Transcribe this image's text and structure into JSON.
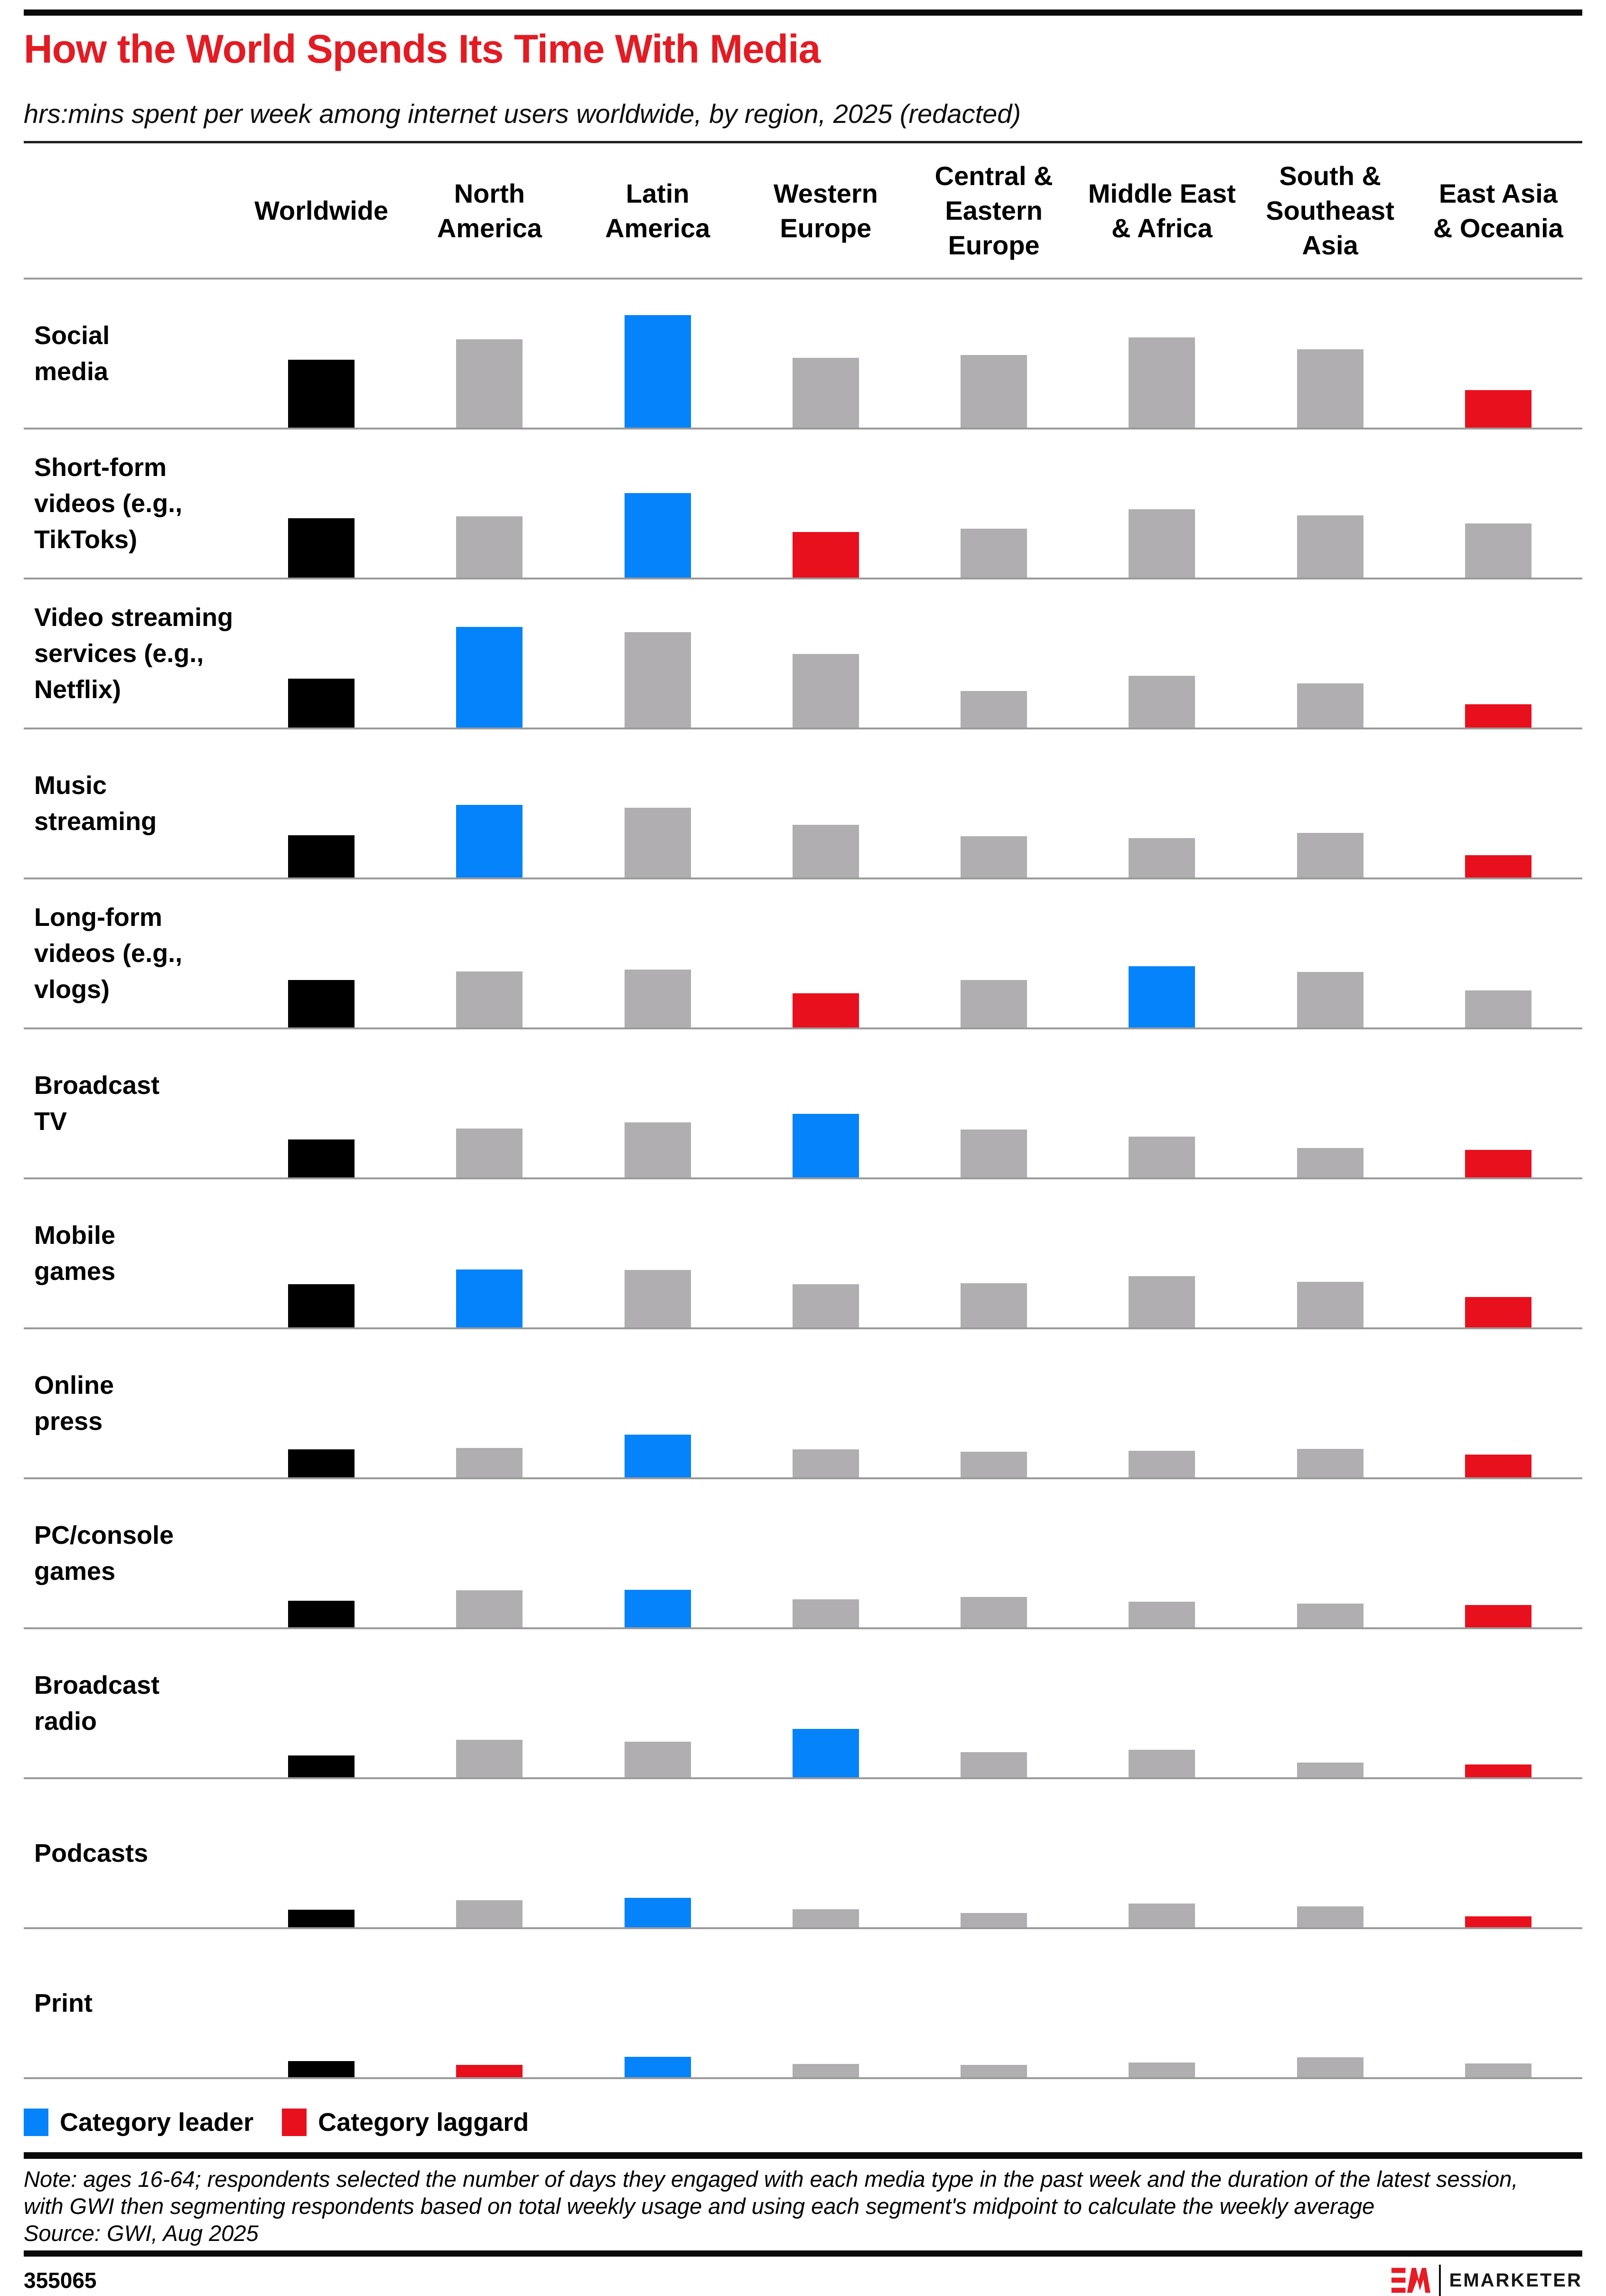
{
  "header": {
    "title": "How the World Spends Its Time With Media",
    "subtitle": "hrs:mins spent per week among internet users worldwide, by region, 2025 (redacted)"
  },
  "colors": {
    "worldwide": "#000000",
    "neutral": "#b0aeb0",
    "leader": "#0583fa",
    "laggard": "#e8101d",
    "title_red": "#e31b23",
    "brand_red": "#e61b25",
    "baseline_gray": "#9a9a9a"
  },
  "legend": {
    "leader_label": "Category leader",
    "laggard_label": "Category laggard"
  },
  "chart_data": {
    "type": "bar",
    "layout": "small-multiples grid: one row per media type, one bar per region, shared baseline per row, legend bottom-left",
    "title": "How the World Spends Its Time With Media",
    "subtitle": "hrs:mins spent per week among internet users worldwide, by region, 2025 (redacted)",
    "values_redacted": true,
    "unit": "relative bar heights in rendered px; actual hrs:mins values are redacted in the source image",
    "grid": false,
    "categories": [
      "Worldwide",
      "North\nAmerica",
      "Latin\nAmerica",
      "Western\nEurope",
      "Central &\nEastern\nEurope",
      "Middle East\n& Africa",
      "South &\nSoutheast\nAsia",
      "East Asia\n& Oceania"
    ],
    "rows": [
      {
        "label": "Social\nmedia",
        "heights": [
          143,
          186,
          237,
          147,
          153,
          190,
          165,
          79
        ],
        "roles": [
          "worldwide",
          "neutral",
          "leader",
          "neutral",
          "neutral",
          "neutral",
          "neutral",
          "laggard"
        ],
        "leader": "Latin America",
        "laggard": "East Asia & Oceania"
      },
      {
        "label": "Short-form\nvideos (e.g.,\nTikToks)",
        "heights": [
          125,
          129,
          178,
          96,
          103,
          144,
          131,
          114
        ],
        "roles": [
          "worldwide",
          "neutral",
          "leader",
          "laggard",
          "neutral",
          "neutral",
          "neutral",
          "neutral"
        ],
        "leader": "Latin America",
        "laggard": "Western Europe"
      },
      {
        "label": "Video streaming\nservices (e.g.,\nNetflix)",
        "heights": [
          103,
          212,
          201,
          155,
          77,
          109,
          93,
          49
        ],
        "roles": [
          "worldwide",
          "leader",
          "neutral",
          "neutral",
          "neutral",
          "neutral",
          "neutral",
          "laggard"
        ],
        "leader": "North America",
        "laggard": "East Asia & Oceania"
      },
      {
        "label": "Music\nstreaming",
        "heights": [
          89,
          153,
          147,
          111,
          87,
          83,
          94,
          47
        ],
        "roles": [
          "worldwide",
          "leader",
          "neutral",
          "neutral",
          "neutral",
          "neutral",
          "neutral",
          "laggard"
        ],
        "leader": "North America",
        "laggard": "East Asia & Oceania"
      },
      {
        "label": "Long-form\nvideos (e.g.,\nvlogs)",
        "heights": [
          100,
          118,
          122,
          72,
          100,
          129,
          117,
          78
        ],
        "roles": [
          "worldwide",
          "neutral",
          "neutral",
          "laggard",
          "neutral",
          "leader",
          "neutral",
          "neutral"
        ],
        "leader": "Middle East & Africa",
        "laggard": "Western Europe"
      },
      {
        "label": "Broadcast\nTV",
        "heights": [
          80,
          103,
          116,
          134,
          101,
          86,
          62,
          58
        ],
        "roles": [
          "worldwide",
          "neutral",
          "neutral",
          "leader",
          "neutral",
          "neutral",
          "neutral",
          "laggard"
        ],
        "leader": "Western Europe",
        "laggard": "East Asia & Oceania"
      },
      {
        "label": "Mobile\ngames",
        "heights": [
          91,
          122,
          121,
          91,
          93,
          108,
          96,
          64
        ],
        "roles": [
          "worldwide",
          "leader",
          "neutral",
          "neutral",
          "neutral",
          "neutral",
          "neutral",
          "laggard"
        ],
        "leader": "North America",
        "laggard": "East Asia & Oceania"
      },
      {
        "label": "Online\npress",
        "heights": [
          59,
          62,
          90,
          59,
          54,
          56,
          60,
          48
        ],
        "roles": [
          "worldwide",
          "neutral",
          "leader",
          "neutral",
          "neutral",
          "neutral",
          "neutral",
          "laggard"
        ],
        "leader": "Latin America",
        "laggard": "East Asia & Oceania"
      },
      {
        "label": "PC/console\ngames",
        "heights": [
          56,
          78,
          79,
          59,
          64,
          54,
          50,
          47
        ],
        "roles": [
          "worldwide",
          "neutral",
          "leader",
          "neutral",
          "neutral",
          "neutral",
          "neutral",
          "laggard"
        ],
        "leader": "Latin America",
        "laggard": "East Asia & Oceania"
      },
      {
        "label": "Broadcast\nradio",
        "heights": [
          46,
          79,
          75,
          102,
          53,
          58,
          31,
          27
        ],
        "roles": [
          "worldwide",
          "neutral",
          "neutral",
          "leader",
          "neutral",
          "neutral",
          "neutral",
          "laggard"
        ],
        "leader": "Western Europe",
        "laggard": "East Asia & Oceania"
      },
      {
        "label": "Podcasts",
        "heights": [
          37,
          57,
          62,
          38,
          30,
          50,
          44,
          23
        ],
        "roles": [
          "worldwide",
          "neutral",
          "leader",
          "neutral",
          "neutral",
          "neutral",
          "neutral",
          "laggard"
        ],
        "leader": "Latin America",
        "laggard": "East Asia & Oceania"
      },
      {
        "label": "Print",
        "heights": [
          34,
          26,
          43,
          28,
          26,
          31,
          42,
          29
        ],
        "roles": [
          "worldwide",
          "laggard",
          "leader",
          "neutral",
          "neutral",
          "neutral",
          "neutral",
          "neutral"
        ],
        "leader": "Latin America",
        "laggard": "North America"
      }
    ],
    "legend": [
      "Category leader",
      "Category laggard"
    ],
    "legend_position": "bottom-left"
  },
  "footnote": {
    "note": "Note: ages 16-64; respondents selected the number of days they engaged with each media type in the past week and the duration of the latest session,\nwith GWI then segmenting respondents based on total weekly usage and using each segment's midpoint to calculate the weekly average",
    "source": "Source: GWI, Aug 2025"
  },
  "footer": {
    "chart_id": "355065",
    "brand_wordmark": "EMARKETER"
  }
}
